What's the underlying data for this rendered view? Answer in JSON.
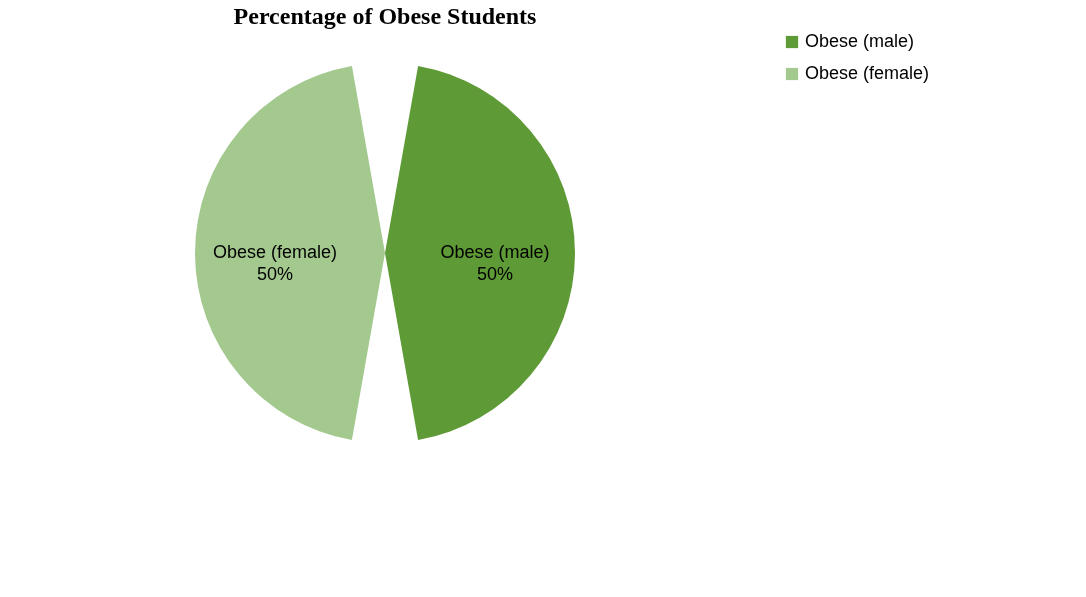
{
  "chart_data": {
    "type": "pie",
    "title": "Percentage of Obese Students",
    "categories": [
      "Obese (male)",
      "Obese (female)"
    ],
    "values": [
      50,
      50
    ],
    "colors": [
      "#5e9a35",
      "#a3c98f"
    ],
    "value_labels": [
      "50%",
      "50%"
    ],
    "legend": "right"
  }
}
